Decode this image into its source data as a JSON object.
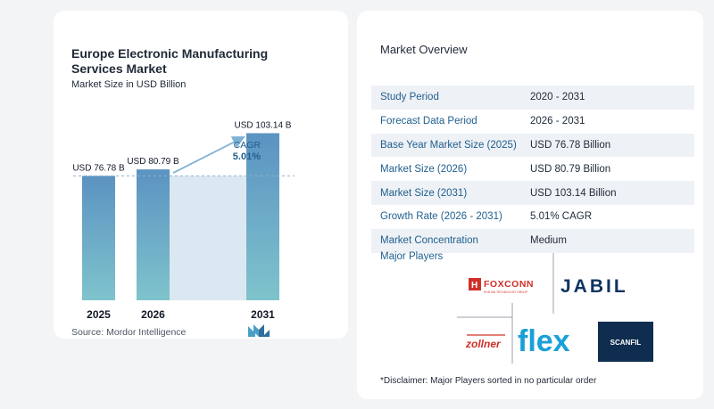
{
  "chart": {
    "title": "Europe Electronic Manufacturing Services Market",
    "subtitle": "Market Size in USD Billion",
    "source": "Source:  Mordor Intelligence",
    "cagr_label": "CAGR",
    "cagr_value": "5.01%"
  },
  "chart_data": {
    "type": "bar",
    "categories": [
      "2025",
      "2026",
      "2031"
    ],
    "values": [
      76.78,
      80.79,
      103.14
    ],
    "data_labels": [
      "USD 76.78 B",
      "USD 80.79 B",
      "USD 103.14 B"
    ],
    "title": "Europe Electronic Manufacturing Services Market",
    "subtitle": "Market Size in USD Billion",
    "xlabel": "",
    "ylabel": "",
    "ylim": [
      0,
      110
    ],
    "grid": false,
    "annotation": "CAGR 5.01%"
  },
  "colors": {
    "bar_top": "#5b93c2",
    "bar_bottom": "#7fc3cc",
    "band": "#dbe8f2",
    "arrow": "#7fb3d5",
    "label_blue": "#1f5f8f"
  },
  "overview": {
    "title": "Market Overview",
    "rows": [
      {
        "label": "Study Period",
        "value": "2020 - 2031"
      },
      {
        "label": "Forecast Data Period",
        "value": "2026 - 2031"
      },
      {
        "label": "Base Year Market Size (2025)",
        "value": "USD 76.78 Billion"
      },
      {
        "label": "Market Size (2026)",
        "value": "USD 80.79 Billion"
      },
      {
        "label": "Market Size (2031)",
        "value": "USD 103.14 Billion"
      },
      {
        "label": "Growth Rate (2026 - 2031)",
        "value": "5.01% CAGR"
      },
      {
        "label": "Market Concentration",
        "value": "Medium"
      }
    ],
    "players_title": "Major Players",
    "players": [
      "FOXCONN",
      "JABIL",
      "zollner",
      "flex",
      "SCANFIL"
    ],
    "foxconn_tagline": "HON HAI TECHNOLOGY GROUP",
    "disclaimer": "*Disclaimer: Major Players sorted in no particular order"
  }
}
